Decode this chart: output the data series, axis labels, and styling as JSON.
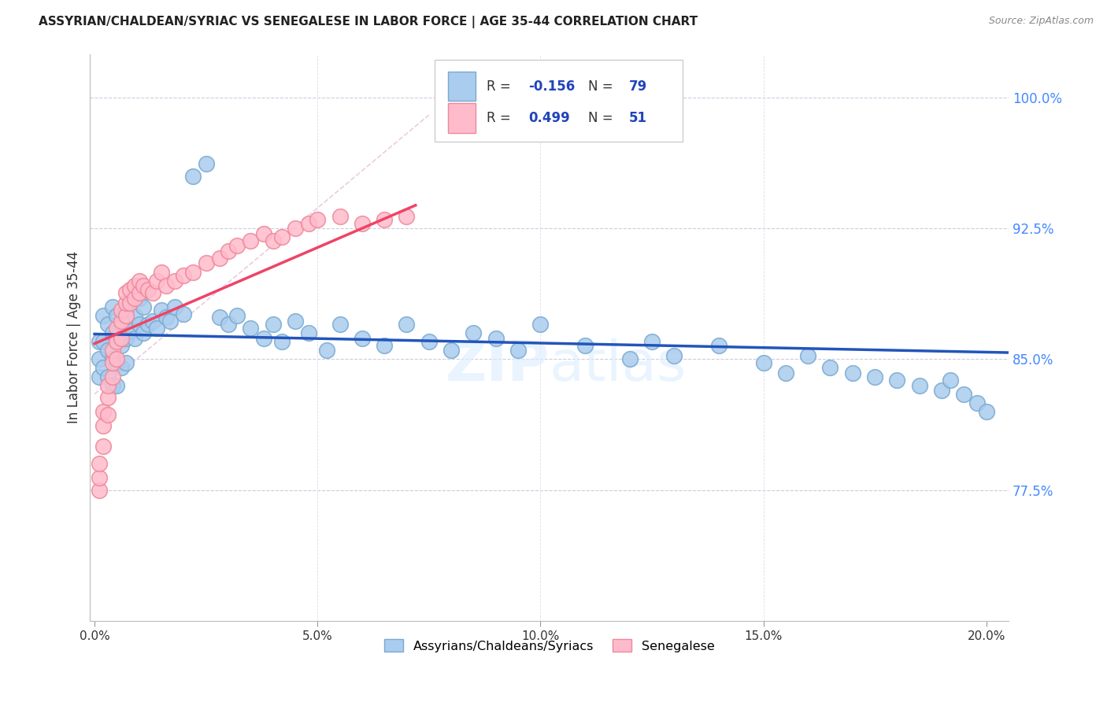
{
  "title": "ASSYRIAN/CHALDEAN/SYRIAC VS SENEGALESE IN LABOR FORCE | AGE 35-44 CORRELATION CHART",
  "source": "Source: ZipAtlas.com",
  "ylabel": "In Labor Force | Age 35-44",
  "xlim": [
    -0.001,
    0.205
  ],
  "ylim": [
    0.7,
    1.025
  ],
  "xticks": [
    0.0,
    0.05,
    0.1,
    0.15,
    0.2
  ],
  "xticklabels": [
    "0.0%",
    "5.0%",
    "10.0%",
    "15.0%",
    "20.0%"
  ],
  "yticks_right": [
    1.0,
    0.925,
    0.85,
    0.775
  ],
  "ytick_right_labels": [
    "100.0%",
    "92.5%",
    "85.0%",
    "77.5%"
  ],
  "blue_color": "#AACCEE",
  "blue_edge": "#7AAAD0",
  "pink_color": "#FFBBCC",
  "pink_edge": "#EE8899",
  "trend_blue_color": "#2255BB",
  "trend_pink_color": "#EE4466",
  "ref_line_color": "#CCCCDD",
  "R_blue": -0.156,
  "N_blue": 79,
  "R_pink": 0.499,
  "N_pink": 51,
  "watermark": "ZIPatlas",
  "blue_x": [
    0.001,
    0.001,
    0.001,
    0.002,
    0.002,
    0.002,
    0.003,
    0.003,
    0.003,
    0.004,
    0.004,
    0.004,
    0.004,
    0.005,
    0.005,
    0.005,
    0.005,
    0.006,
    0.006,
    0.006,
    0.007,
    0.007,
    0.007,
    0.008,
    0.008,
    0.009,
    0.009,
    0.01,
    0.01,
    0.011,
    0.011,
    0.012,
    0.013,
    0.014,
    0.015,
    0.016,
    0.017,
    0.018,
    0.02,
    0.022,
    0.025,
    0.028,
    0.03,
    0.032,
    0.035,
    0.038,
    0.04,
    0.042,
    0.045,
    0.048,
    0.052,
    0.055,
    0.06,
    0.065,
    0.07,
    0.075,
    0.08,
    0.085,
    0.09,
    0.095,
    0.1,
    0.11,
    0.12,
    0.125,
    0.13,
    0.14,
    0.15,
    0.155,
    0.16,
    0.165,
    0.17,
    0.175,
    0.18,
    0.185,
    0.19,
    0.192,
    0.195,
    0.198,
    0.2
  ],
  "blue_y": [
    0.86,
    0.85,
    0.84,
    0.875,
    0.86,
    0.845,
    0.87,
    0.855,
    0.84,
    0.88,
    0.865,
    0.85,
    0.835,
    0.875,
    0.86,
    0.848,
    0.835,
    0.87,
    0.858,
    0.845,
    0.878,
    0.862,
    0.848,
    0.882,
    0.866,
    0.875,
    0.862,
    0.885,
    0.87,
    0.88,
    0.865,
    0.87,
    0.872,
    0.868,
    0.878,
    0.874,
    0.872,
    0.88,
    0.876,
    0.955,
    0.962,
    0.874,
    0.87,
    0.875,
    0.868,
    0.862,
    0.87,
    0.86,
    0.872,
    0.865,
    0.855,
    0.87,
    0.862,
    0.858,
    0.87,
    0.86,
    0.855,
    0.865,
    0.862,
    0.855,
    0.87,
    0.858,
    0.85,
    0.86,
    0.852,
    0.858,
    0.848,
    0.842,
    0.852,
    0.845,
    0.842,
    0.84,
    0.838,
    0.835,
    0.832,
    0.838,
    0.83,
    0.825,
    0.82
  ],
  "pink_x": [
    0.001,
    0.001,
    0.001,
    0.002,
    0.002,
    0.002,
    0.003,
    0.003,
    0.003,
    0.004,
    0.004,
    0.004,
    0.005,
    0.005,
    0.005,
    0.006,
    0.006,
    0.006,
    0.007,
    0.007,
    0.007,
    0.008,
    0.008,
    0.009,
    0.009,
    0.01,
    0.01,
    0.011,
    0.012,
    0.013,
    0.014,
    0.015,
    0.016,
    0.018,
    0.02,
    0.022,
    0.025,
    0.028,
    0.03,
    0.032,
    0.035,
    0.038,
    0.04,
    0.042,
    0.045,
    0.048,
    0.05,
    0.055,
    0.06,
    0.065,
    0.07
  ],
  "pink_y": [
    0.775,
    0.782,
    0.79,
    0.8,
    0.812,
    0.82,
    0.818,
    0.828,
    0.835,
    0.84,
    0.848,
    0.855,
    0.85,
    0.86,
    0.868,
    0.862,
    0.872,
    0.878,
    0.875,
    0.882,
    0.888,
    0.882,
    0.89,
    0.885,
    0.892,
    0.888,
    0.895,
    0.892,
    0.89,
    0.888,
    0.895,
    0.9,
    0.892,
    0.895,
    0.898,
    0.9,
    0.905,
    0.908,
    0.912,
    0.915,
    0.918,
    0.922,
    0.918,
    0.92,
    0.925,
    0.928,
    0.93,
    0.932,
    0.928,
    0.93,
    0.932
  ]
}
